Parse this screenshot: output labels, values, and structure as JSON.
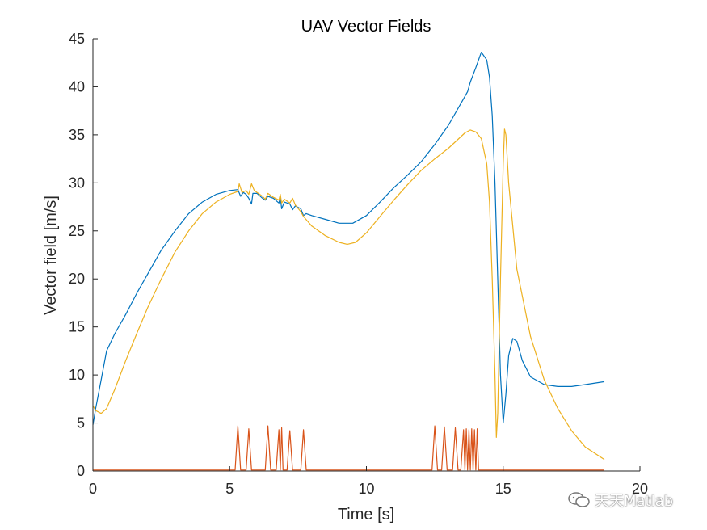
{
  "chart_data": {
    "type": "line",
    "title": "UAV Vector Fields",
    "xlabel": "Time [s]",
    "ylabel": "Vector field [m/s]",
    "xlim": [
      0,
      20
    ],
    "ylim": [
      0,
      45
    ],
    "xticks": [
      0,
      5,
      10,
      15,
      20
    ],
    "yticks": [
      0,
      5,
      10,
      15,
      20,
      25,
      30,
      35,
      40,
      45
    ],
    "grid": false,
    "legend": "none",
    "series": [
      {
        "color": "#0072BD",
        "points": [
          [
            0,
            4.8
          ],
          [
            0.1,
            6.5
          ],
          [
            0.3,
            9.5
          ],
          [
            0.5,
            12.5
          ],
          [
            0.8,
            14.3
          ],
          [
            1.2,
            16.3
          ],
          [
            1.6,
            18.5
          ],
          [
            2,
            20.5
          ],
          [
            2.5,
            23
          ],
          [
            3,
            25
          ],
          [
            3.5,
            26.8
          ],
          [
            4,
            28
          ],
          [
            4.5,
            28.8
          ],
          [
            5,
            29.2
          ],
          [
            5.3,
            29.3
          ],
          [
            5.4,
            28.6
          ],
          [
            5.5,
            29.0
          ],
          [
            5.6,
            28.8
          ],
          [
            5.7,
            28.4
          ],
          [
            5.8,
            27.8
          ],
          [
            5.85,
            28.9
          ],
          [
            6.0,
            28.9
          ],
          [
            6.2,
            28.4
          ],
          [
            6.3,
            28.2
          ],
          [
            6.4,
            28.6
          ],
          [
            6.6,
            28.4
          ],
          [
            6.8,
            27.9
          ],
          [
            6.85,
            28.5
          ],
          [
            6.9,
            27.3
          ],
          [
            7.0,
            28.0
          ],
          [
            7.2,
            27.8
          ],
          [
            7.3,
            27.2
          ],
          [
            7.4,
            27.6
          ],
          [
            7.6,
            27.3
          ],
          [
            7.7,
            26.6
          ],
          [
            7.8,
            26.8
          ],
          [
            8,
            26.6
          ],
          [
            8.5,
            26.2
          ],
          [
            9,
            25.8
          ],
          [
            9.5,
            25.8
          ],
          [
            10,
            26.6
          ],
          [
            10.5,
            28
          ],
          [
            11,
            29.5
          ],
          [
            11.5,
            30.8
          ],
          [
            12,
            32.2
          ],
          [
            12.5,
            34
          ],
          [
            13,
            36
          ],
          [
            13.5,
            38.5
          ],
          [
            13.7,
            39.5
          ],
          [
            13.8,
            40.5
          ],
          [
            14,
            42
          ],
          [
            14.2,
            43.6
          ],
          [
            14.4,
            42.8
          ],
          [
            14.5,
            41
          ],
          [
            14.6,
            37
          ],
          [
            14.7,
            30
          ],
          [
            14.8,
            20
          ],
          [
            14.9,
            10
          ],
          [
            15.0,
            5.0
          ],
          [
            15.1,
            8
          ],
          [
            15.2,
            12
          ],
          [
            15.35,
            13.8
          ],
          [
            15.5,
            13.5
          ],
          [
            15.7,
            11.5
          ],
          [
            16,
            9.8
          ],
          [
            16.5,
            9
          ],
          [
            17,
            8.8
          ],
          [
            17.5,
            8.8
          ],
          [
            18,
            9
          ],
          [
            18.7,
            9.3
          ]
        ]
      },
      {
        "color": "#EDB120",
        "points": [
          [
            0,
            6.8
          ],
          [
            0.1,
            6.3
          ],
          [
            0.3,
            6.0
          ],
          [
            0.5,
            6.5
          ],
          [
            0.8,
            8.5
          ],
          [
            1.2,
            11.5
          ],
          [
            1.6,
            14.3
          ],
          [
            2,
            17
          ],
          [
            2.5,
            20
          ],
          [
            3,
            22.8
          ],
          [
            3.5,
            25
          ],
          [
            4,
            26.8
          ],
          [
            4.5,
            28
          ],
          [
            5,
            28.8
          ],
          [
            5.3,
            29.1
          ],
          [
            5.35,
            29.9
          ],
          [
            5.45,
            29.0
          ],
          [
            5.6,
            29.2
          ],
          [
            5.7,
            28.8
          ],
          [
            5.8,
            29.9
          ],
          [
            5.9,
            29.2
          ],
          [
            6.0,
            29.0
          ],
          [
            6.2,
            28.6
          ],
          [
            6.3,
            28.3
          ],
          [
            6.4,
            28.9
          ],
          [
            6.6,
            28.5
          ],
          [
            6.8,
            28.2
          ],
          [
            6.85,
            28.8
          ],
          [
            6.9,
            27.9
          ],
          [
            7.0,
            28.3
          ],
          [
            7.2,
            27.9
          ],
          [
            7.3,
            28.4
          ],
          [
            7.4,
            27.7
          ],
          [
            7.6,
            27.0
          ],
          [
            7.7,
            26.5
          ],
          [
            8,
            25.5
          ],
          [
            8.5,
            24.5
          ],
          [
            9,
            23.8
          ],
          [
            9.3,
            23.6
          ],
          [
            9.6,
            23.8
          ],
          [
            10,
            24.8
          ],
          [
            10.5,
            26.5
          ],
          [
            11,
            28.2
          ],
          [
            11.5,
            29.8
          ],
          [
            12,
            31.3
          ],
          [
            12.5,
            32.5
          ],
          [
            13,
            33.6
          ],
          [
            13.3,
            34.4
          ],
          [
            13.6,
            35.2
          ],
          [
            13.8,
            35.5
          ],
          [
            14,
            35.3
          ],
          [
            14.2,
            34.6
          ],
          [
            14.4,
            32
          ],
          [
            14.5,
            28
          ],
          [
            14.6,
            20
          ],
          [
            14.7,
            10
          ],
          [
            14.75,
            3.5
          ],
          [
            14.8,
            6
          ],
          [
            14.9,
            20
          ],
          [
            15.0,
            32
          ],
          [
            15.05,
            35.6
          ],
          [
            15.1,
            35
          ],
          [
            15.2,
            30
          ],
          [
            15.5,
            21
          ],
          [
            16,
            14
          ],
          [
            16.5,
            9.5
          ],
          [
            17,
            6.5
          ],
          [
            17.5,
            4.2
          ],
          [
            18,
            2.5
          ],
          [
            18.7,
            1.2
          ]
        ]
      },
      {
        "color": "#D95319",
        "points": [
          [
            0,
            0.1
          ],
          [
            5.2,
            0.1
          ],
          [
            5.3,
            4.7
          ],
          [
            5.4,
            0.1
          ],
          [
            5.6,
            0.1
          ],
          [
            5.7,
            4.4
          ],
          [
            5.8,
            0.1
          ],
          [
            6.3,
            0.1
          ],
          [
            6.4,
            4.7
          ],
          [
            6.5,
            0.1
          ],
          [
            6.7,
            0.1
          ],
          [
            6.8,
            4.3
          ],
          [
            6.85,
            0.1
          ],
          [
            6.9,
            4.5
          ],
          [
            6.95,
            0.1
          ],
          [
            7.1,
            0.1
          ],
          [
            7.2,
            4.2
          ],
          [
            7.3,
            0.1
          ],
          [
            7.6,
            0.1
          ],
          [
            7.7,
            4.3
          ],
          [
            7.8,
            0.1
          ],
          [
            12.4,
            0.1
          ],
          [
            12.5,
            4.7
          ],
          [
            12.6,
            0.1
          ],
          [
            12.75,
            0.1
          ],
          [
            12.85,
            4.6
          ],
          [
            12.95,
            0.1
          ],
          [
            13.15,
            0.1
          ],
          [
            13.25,
            4.5
          ],
          [
            13.35,
            0.1
          ],
          [
            13.45,
            0.1
          ],
          [
            13.55,
            4.3
          ],
          [
            13.6,
            0.1
          ],
          [
            13.65,
            4.4
          ],
          [
            13.7,
            0.1
          ],
          [
            13.75,
            4.3
          ],
          [
            13.8,
            0.1
          ],
          [
            13.85,
            4.4
          ],
          [
            13.9,
            0.1
          ],
          [
            13.95,
            4.3
          ],
          [
            14.0,
            0.1
          ],
          [
            14.05,
            4.4
          ],
          [
            14.1,
            0.1
          ],
          [
            18.7,
            0.1
          ]
        ]
      }
    ]
  },
  "watermark": {
    "text": "天天Matlab",
    "icon": "wechat-icon"
  }
}
